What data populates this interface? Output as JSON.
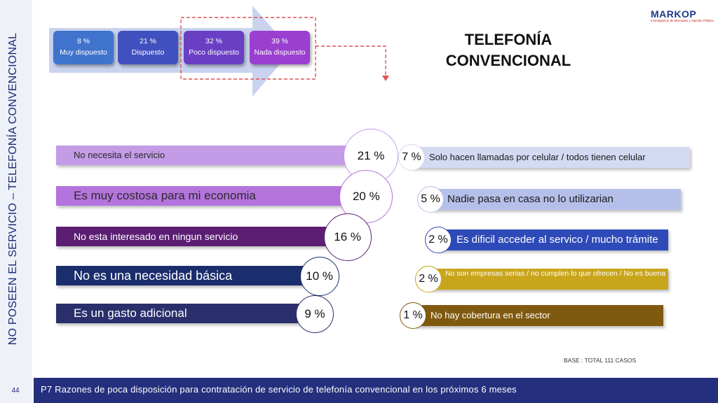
{
  "page": {
    "number": "44",
    "vertical_title": "NO POSEEN EL SERVICIO – TELEFONÍA CONVENCIONAL"
  },
  "header": {
    "title_line1": "TELEFONÍA",
    "title_line2": "CONVENCIONAL"
  },
  "logo": {
    "text": "MARKOP",
    "subtitle": "Investigación de Mercados y Opinión Pública"
  },
  "footer": {
    "question": "P7 Razones de poca disposición para contratación de servicio de telefonía convencional en los próximos 6 meses"
  },
  "base": {
    "label": "BASE   : TOTAL  111 CASOS"
  },
  "colors": {
    "arrow": "#c9d3ef",
    "scale": [
      "#3f73cc",
      "#4150bf",
      "#6a3fc4",
      "#9a3fcf"
    ],
    "left_bars": [
      "#c39be6",
      "#b573dd",
      "#5b1e73",
      "#1a2e6e",
      "#2a2f6c"
    ],
    "right_bars": [
      "#d3daf2",
      "#b5c0ea",
      "#2e4ab8",
      "#c9a51c",
      "#7f5a0e"
    ],
    "dashed_highlight": "#e05050"
  },
  "chart_data": [
    {
      "type": "table",
      "categories": [
        "Muy dispuesto",
        "Dispuesto",
        "Poco dispuesto",
        "Nada dispuesto"
      ],
      "values": [
        8,
        21,
        32,
        39
      ],
      "value_labels": [
        "8 %",
        "21 %",
        "32 %",
        "39 %"
      ],
      "highlighted": [
        "Poco dispuesto",
        "Nada dispuesto"
      ]
    },
    {
      "type": "bar",
      "categories": [
        "No necesita  el servicio",
        "Es muy costosa para mi economia",
        "No esta interesado en ningun servicio",
        "No es una necesidad básica",
        "Es un gasto adicional"
      ],
      "values": [
        21,
        20,
        16,
        10,
        9
      ],
      "value_labels": [
        "21 %",
        "20 %",
        "16 %",
        "10 %",
        "9 %"
      ]
    },
    {
      "type": "bar",
      "categories": [
        "Solo hacen llamadas por celular / todos tienen celular",
        "Nadie pasa en casa no lo utilizarian",
        "Es dificil acceder al servico / mucho trámite",
        "No son empresas serias / no cumplen lo que ofrecen / No es buena",
        "No hay cobertura en el sector"
      ],
      "values": [
        7,
        5,
        2,
        2,
        1
      ],
      "value_labels": [
        "7 %",
        "5 %",
        "2 %",
        "2 %",
        "1 %"
      ]
    }
  ]
}
